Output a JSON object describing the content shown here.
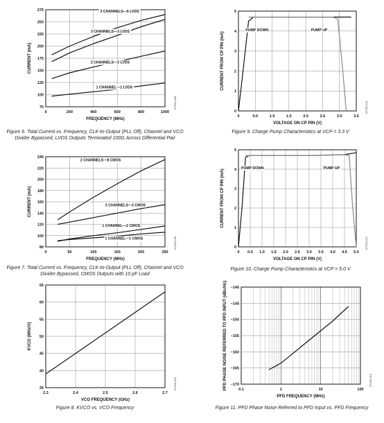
{
  "figures": [
    {
      "id": "fig6",
      "caption": "Figure 6. Total Current vs. Frequency, CLK-to-Output (PLL Off), Channel and VCO Divider Bypassed, LVDS Outputs Terminated 100Ω Across Differential Pair",
      "side_label": "07220-108"
    },
    {
      "id": "fig7",
      "caption": "Figure 7. Total Current vs. Frequency, CLK-to-Output (PLL Off), Channel and VCO Divider Bypassed, CMOS Outputs with 10 pF Load",
      "side_label": "07220-109"
    },
    {
      "id": "fig8",
      "caption": "Figure 8. KVCO vs. VCO Frequency",
      "side_label": "07220-110"
    },
    {
      "id": "fig9",
      "caption": "Figure 9. Charge Pump Characteristics at VCP = 3.3 V",
      "side_label": "07220-111"
    },
    {
      "id": "fig10",
      "caption": "Figure 10. Charge Pump Characteristics at VCP = 5.0 V",
      "side_label": "07220-112"
    },
    {
      "id": "fig11",
      "caption": "Figure 11. PFD Phase Noise Referred to PFD Input vs. PFD Frequency",
      "side_label": "07220-013"
    }
  ],
  "chart_data": [
    {
      "id": "fig6",
      "type": "line",
      "xlabel": "FREQUENCY (MHz)",
      "ylabel": "CURRENT (mA)",
      "xlim": [
        0,
        1000
      ],
      "ylim": [
        75,
        275
      ],
      "xticks": [
        "0",
        "200",
        "400",
        "600",
        "800",
        "1000"
      ],
      "yticks": [
        "75",
        "100",
        "125",
        "150",
        "175",
        "200",
        "225",
        "250",
        "275"
      ],
      "grid": true,
      "series": [
        {
          "name": "3 CHANNELS—6 LVDS",
          "x": [
            50,
            200,
            400,
            600,
            800,
            1000
          ],
          "y": [
            182,
            200,
            220,
            238,
            253,
            265
          ]
        },
        {
          "name": "3 CHANNELS—3 LVDS",
          "x": [
            50,
            200,
            400,
            600,
            800,
            1000
          ],
          "y": [
            168,
            186,
            205,
            222,
            240,
            255
          ]
        },
        {
          "name": "2 CHANNELS—2 LVDS",
          "x": [
            50,
            200,
            400,
            600,
            800,
            1000
          ],
          "y": [
            133,
            145,
            157,
            168,
            179,
            190
          ]
        },
        {
          "name": "1 CHANNEL—1 LVDS",
          "x": [
            50,
            200,
            400,
            600,
            800,
            1000
          ],
          "y": [
            97,
            101,
            106,
            111,
            118,
            124
          ]
        }
      ],
      "annotations": [
        {
          "text": "3 CHANNELS—6 LVDS",
          "x": 620,
          "y": 269
        },
        {
          "text": "3 CHANNELS—3 LVDS",
          "x": 540,
          "y": 228
        },
        {
          "text": "2 CHANNELS—2 LVDS",
          "x": 540,
          "y": 164
        },
        {
          "text": "1 CHANNEL—1 LVDS",
          "x": 575,
          "y": 113
        }
      ]
    },
    {
      "id": "fig7",
      "type": "line",
      "xlabel": "FREQUENCY (MHz)",
      "ylabel": "CURRENT (mA)",
      "xlim": [
        0,
        250
      ],
      "ylim": [
        80,
        240
      ],
      "xticks": [
        "0",
        "50",
        "100",
        "150",
        "200",
        "250"
      ],
      "yticks": [
        "80",
        "100",
        "120",
        "140",
        "160",
        "180",
        "200",
        "220",
        "240"
      ],
      "grid": true,
      "series": [
        {
          "name": "2 CHANNELS—8 CMOS",
          "x": [
            25,
            50,
            100,
            150,
            200,
            250
          ],
          "y": [
            128,
            142,
            168,
            192,
            215,
            235
          ]
        },
        {
          "name": "2 CHANNELS—2 CMOS",
          "x": [
            25,
            50,
            100,
            150,
            200,
            250
          ],
          "y": [
            120,
            124,
            132,
            140,
            148,
            155
          ]
        },
        {
          "name": "1 CHANNEL—2 CMOS",
          "x": [
            25,
            50,
            100,
            150,
            200,
            250
          ],
          "y": [
            90,
            94,
            100,
            105,
            111,
            117
          ]
        },
        {
          "name": "1 CHANNEL—1 CMOS",
          "x": [
            25,
            50,
            100,
            150,
            200,
            250
          ],
          "y": [
            91,
            93,
            96,
            99,
            103,
            106
          ]
        }
      ],
      "annotations": [
        {
          "text": "2 CHANNELS—8 CMOS",
          "x": 115,
          "y": 232
        },
        {
          "text": "2 CHANNELS—2 CMOS",
          "x": 167,
          "y": 152
        },
        {
          "text": "1 CHANNEL—2 CMOS",
          "x": 158,
          "y": 116
        },
        {
          "text": "1 CHANNEL—1 CMOS",
          "x": 164,
          "y": 93
        }
      ]
    },
    {
      "id": "fig8",
      "type": "line",
      "xlabel": "VCO FREQUENCY (GHz)",
      "ylabel": "KVCO (MHz/V)",
      "xlim": [
        2.3,
        2.7
      ],
      "ylim": [
        35,
        65
      ],
      "xticks": [
        "2.3",
        "2.4",
        "2.5",
        "2.6",
        "2.7"
      ],
      "yticks": [
        "35",
        "40",
        "45",
        "50",
        "55",
        "60",
        "65"
      ],
      "grid": true,
      "series": [
        {
          "name": "",
          "x": [
            2.3,
            2.4,
            2.5,
            2.6,
            2.7
          ],
          "y": [
            39,
            45,
            51,
            57,
            63
          ]
        }
      ]
    },
    {
      "id": "fig9",
      "type": "line",
      "xlabel": "VOLTAGE ON CP PIN (V)",
      "ylabel": "CURRENT FROM CP PIN (mA)",
      "xlim": [
        0,
        3.5
      ],
      "ylim": [
        0,
        5
      ],
      "xticks": [
        "0",
        "0.5",
        "1.0",
        "1.5",
        "2.0",
        "2.5",
        "3.0",
        "3.5"
      ],
      "yticks": [
        "0",
        "1",
        "2",
        "3",
        "4",
        "5"
      ],
      "grid": true,
      "series": [
        {
          "name": "PUMP DOWN",
          "x": [
            0,
            0.15,
            0.3,
            0.45,
            1.0,
            2.0,
            3.0,
            3.35
          ],
          "y": [
            0,
            2.2,
            4.5,
            4.7,
            4.7,
            4.7,
            4.7,
            4.7
          ]
        },
        {
          "name": "PUMP UP",
          "x": [
            0.3,
            1.0,
            2.0,
            2.8,
            2.95,
            3.1,
            3.2
          ],
          "y": [
            4.7,
            4.7,
            4.7,
            4.7,
            4.6,
            2.0,
            0
          ]
        }
      ],
      "annotations": [
        {
          "text": "PUMP DOWN",
          "x": 0.55,
          "y": 4.0
        },
        {
          "text": "PUMP UP",
          "x": 2.4,
          "y": 4.0
        }
      ]
    },
    {
      "id": "fig10",
      "type": "line",
      "xlabel": "VOLTAGE ON CP PIN (V)",
      "ylabel": "CURRENT FROM CP PIN (mA)",
      "xlim": [
        0,
        5.0
      ],
      "ylim": [
        0,
        5
      ],
      "xticks": [
        "0",
        "0.5",
        "1.0",
        "1.5",
        "2.0",
        "2.5",
        "3.0",
        "3.5",
        "4.0",
        "4.5",
        "5.0"
      ],
      "yticks": [
        "0",
        "1",
        "2",
        "3",
        "4",
        "5"
      ],
      "grid": true,
      "series": [
        {
          "name": "PUMP DOWN",
          "x": [
            0,
            0.15,
            0.3,
            0.45,
            1.5,
            3.0,
            4.5,
            5.0
          ],
          "y": [
            0,
            2.0,
            4.6,
            4.7,
            4.7,
            4.7,
            4.75,
            4.85
          ]
        },
        {
          "name": "PUMP UP",
          "x": [
            0.3,
            1.5,
            3.0,
            4.5,
            4.7,
            4.85,
            5.0
          ],
          "y": [
            4.7,
            4.7,
            4.7,
            4.75,
            4.7,
            2.0,
            0
          ]
        }
      ],
      "annotations": [
        {
          "text": "PUMP DOWN",
          "x": 0.6,
          "y": 4.0
        },
        {
          "text": "PUMP UP",
          "x": 3.95,
          "y": 4.0
        }
      ]
    },
    {
      "id": "fig11",
      "type": "line",
      "xlabel": "PFD FREQUENCY (MHz)",
      "ylabel": "PFD PHASE NOISE REFERRED TO PFD INPUT (dBc/Hz)",
      "xscale": "log",
      "xlim": [
        0.1,
        100
      ],
      "ylim": [
        -170,
        -140
      ],
      "xticks": [
        "0.1",
        "1",
        "10",
        "100"
      ],
      "yticks": [
        "−140",
        "−145",
        "−150",
        "−155",
        "−160",
        "−165",
        "−170"
      ],
      "grid": true,
      "series": [
        {
          "name": "",
          "x": [
            0.5,
            1,
            2,
            5,
            10,
            20,
            50
          ],
          "y": [
            -165.5,
            -163.5,
            -160.5,
            -156.5,
            -153.5,
            -150.5,
            -146
          ]
        }
      ]
    }
  ]
}
